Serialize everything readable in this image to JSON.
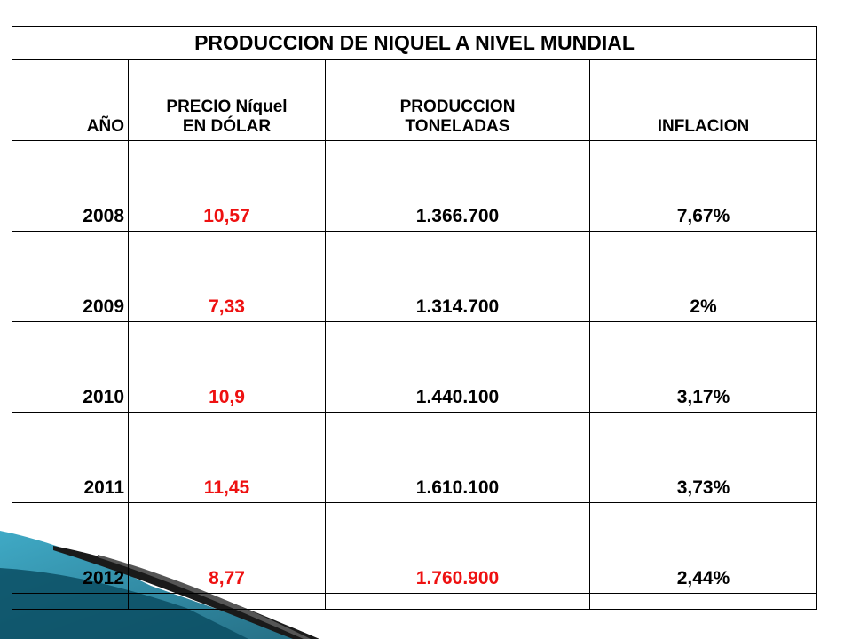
{
  "table": {
    "title": "PRODUCCION DE NIQUEL A NIVEL MUNDIAL",
    "headers": {
      "year": "AÑO",
      "price_line1": "PRECIO Níquel",
      "price_line2": "EN DÓLAR",
      "production_line1": "PRODUCCION",
      "production_line2": "TONELADAS",
      "inflation": "INFLACION"
    },
    "rows": [
      {
        "year": "2008",
        "price": "10,57",
        "production": "1.366.700",
        "inflation": "7,67%"
      },
      {
        "year": "2009",
        "price": "7,33",
        "production": "1.314.700",
        "inflation": "2%"
      },
      {
        "year": "2010",
        "price": "10,9",
        "production": "1.440.100",
        "inflation": "3,17%"
      },
      {
        "year": "2011",
        "price": "11,45",
        "production": "1.610.100",
        "inflation": "3,73%"
      },
      {
        "year": "2012",
        "price": "8,77",
        "production": "1.760.900",
        "inflation": "2,44%"
      }
    ]
  },
  "colors": {
    "price_text": "#ee1111",
    "highlight_text": "#ee1111",
    "border": "#000000",
    "decor_teal": "#1e8aa6",
    "decor_dark": "#1a1a1a"
  }
}
